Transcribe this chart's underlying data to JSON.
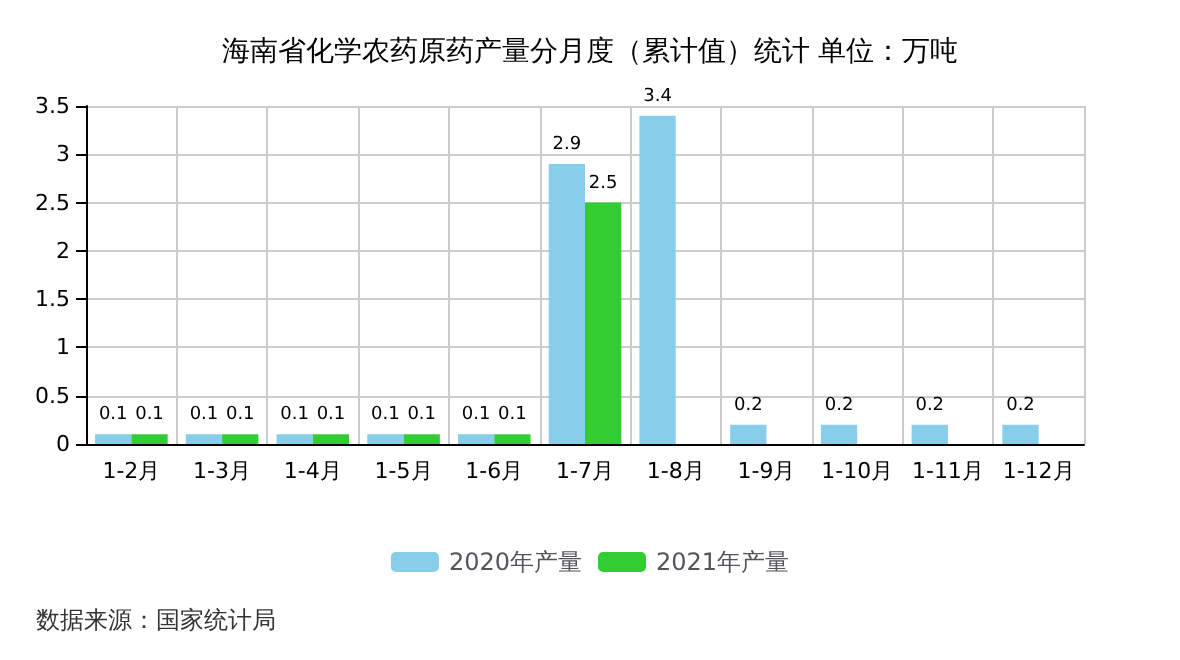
{
  "chart_data": {
    "type": "bar",
    "title": "海南省化学农药原药产量分月度（累计值）统计 单位：万吨",
    "categories": [
      "1-2月",
      "1-3月",
      "1-4月",
      "1-5月",
      "1-6月",
      "1-7月",
      "1-8月",
      "1-9月",
      "1-10月",
      "1-11月",
      "1-12月"
    ],
    "series": [
      {
        "name": "2020年产量",
        "color": "#87ceeb",
        "values": [
          0.1,
          0.1,
          0.1,
          0.1,
          0.1,
          2.9,
          3.4,
          0.2,
          0.2,
          0.2,
          0.2
        ]
      },
      {
        "name": "2021年产量",
        "color": "#33cc33",
        "values": [
          0.1,
          0.1,
          0.1,
          0.1,
          0.1,
          2.5,
          null,
          null,
          null,
          null,
          null
        ]
      }
    ],
    "ylim": [
      0,
      3.5
    ],
    "yticks": [
      0,
      0.5,
      1,
      1.5,
      2,
      2.5,
      3,
      3.5
    ],
    "grid": true,
    "legend": "bottom",
    "data_labels": true,
    "annotations": [
      "数据来源：国家统计局"
    ]
  }
}
